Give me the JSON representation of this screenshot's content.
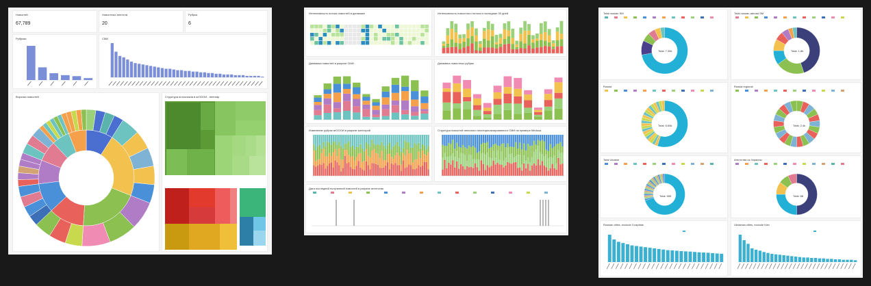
{
  "dashboard1": {
    "kpis": [
      {
        "title": "Новостей",
        "value": "67,789"
      },
      {
        "title": "Новостных агентств",
        "value": "20"
      },
      {
        "title": "Рубрик",
        "value": "6"
      }
    ],
    "rubrics_title": "Рубрики",
    "smi_title": "СМИ",
    "funnel_title": "Воронка новостей",
    "treemap_title": "Структура источников в агОООИ - treemap"
  },
  "dashboard2": {
    "heatmap_title": "Интенсивность потока новостей в динамике",
    "bars30_title": "Интенсивность новостного потока в последние 30 дней",
    "dyn_smi_title": "Динамика новостей в разрезе СМИ",
    "dyn_rub_title": "Динамика новостных рубрик",
    "change_title": "Изменение рубрик агОООИ в разрезе категорий",
    "struct_title": "Структура новостей типичного неспециализированного СМИ на примере Medusa",
    "timeline_title": "Дата последней полученной новостей в разрезе агентства"
  },
  "dashboard3": {
    "donuts": [
      {
        "title": "Total russian SM",
        "center": "Total: 7.35k"
      },
      {
        "title": "Total russian abroad SM",
        "center": "Total: 1.8k"
      },
      {
        "title": "Russia",
        "center": "Total: 6.65k"
      },
      {
        "title": "Russia regional",
        "center": "Total: 2.4k"
      },
      {
        "title": "Total Ukraine",
        "center": "Total: 555"
      },
      {
        "title": "Агентства из Украины",
        "center": "Total: 88"
      }
    ],
    "bottom_left_title": "Russian cities, exclude 3 capitals",
    "bottom_right_title": "Ukrainian cities, exclude Kiev"
  },
  "chart_data": [
    {
      "type": "bar",
      "title": "Рубрики",
      "values": [
        35,
        13,
        7,
        5,
        4,
        2
      ]
    },
    {
      "type": "bar",
      "title": "СМИ",
      "values": [
        48,
        36,
        30,
        28,
        25,
        22,
        20,
        19,
        18,
        17,
        16,
        15,
        14,
        13,
        12,
        12,
        11,
        10,
        10,
        9,
        9,
        8,
        8,
        7,
        7,
        6,
        6,
        5,
        5,
        4,
        4,
        4,
        3,
        3,
        3,
        2,
        2,
        2,
        2,
        1
      ]
    },
    {
      "type": "bar",
      "title": "Russian cities, exclude 3 capitals",
      "values": [
        230,
        190,
        170,
        160,
        150,
        140,
        135,
        130,
        125,
        120,
        115,
        110,
        105,
        100,
        98,
        95,
        92,
        90,
        88,
        85,
        82,
        80,
        78,
        75,
        72,
        70
      ]
    },
    {
      "type": "bar",
      "title": "Ukrainian cities, exclude Kiev",
      "values": [
        60,
        48,
        40,
        30,
        27,
        25,
        22,
        20,
        18,
        17,
        16,
        15,
        14,
        13,
        12,
        11,
        10,
        10,
        9,
        9,
        8,
        8,
        7,
        7,
        6,
        6,
        5,
        5,
        5,
        4
      ]
    }
  ]
}
